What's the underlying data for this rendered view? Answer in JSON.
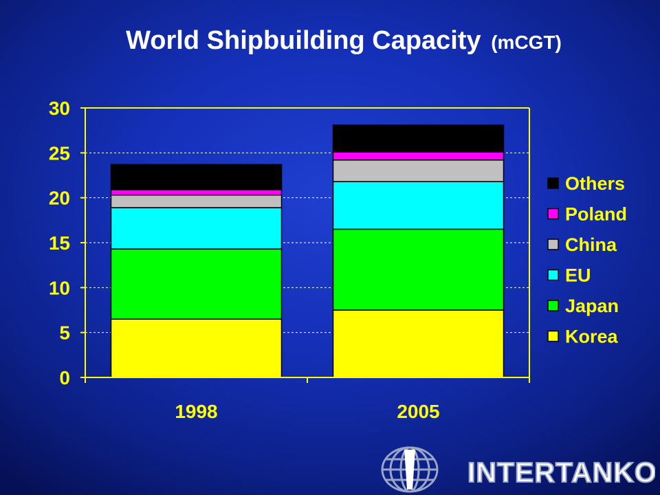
{
  "slide": {
    "title": "World Shipbuilding Capacity",
    "title_unit": "(mCGT)",
    "logo_text": "INTERTANKO"
  },
  "colors": {
    "Korea": "#ffff00",
    "Japan": "#00ff00",
    "EU": "#00ffff",
    "China": "#c0c0c0",
    "Poland": "#ff00ff",
    "Others": "#000000",
    "axis": "#ffff00",
    "text": "#ffff00"
  },
  "chart_data": {
    "type": "bar",
    "stacked": true,
    "title": "World Shipbuilding Capacity (mCGT)",
    "xlabel": "",
    "ylabel": "",
    "categories": [
      "1998",
      "2005"
    ],
    "ylim": [
      0,
      30
    ],
    "yticks": [
      0,
      5,
      10,
      15,
      20,
      25,
      30
    ],
    "grid": true,
    "legend": "right",
    "series": [
      {
        "name": "Korea",
        "values": [
          6.5,
          7.5
        ]
      },
      {
        "name": "Japan",
        "values": [
          7.8,
          9.0
        ]
      },
      {
        "name": "EU",
        "values": [
          4.6,
          5.3
        ]
      },
      {
        "name": "China",
        "values": [
          1.4,
          2.4
        ]
      },
      {
        "name": "Poland",
        "values": [
          0.6,
          0.9
        ]
      },
      {
        "name": "Others",
        "values": [
          2.8,
          3.0
        ]
      }
    ]
  }
}
